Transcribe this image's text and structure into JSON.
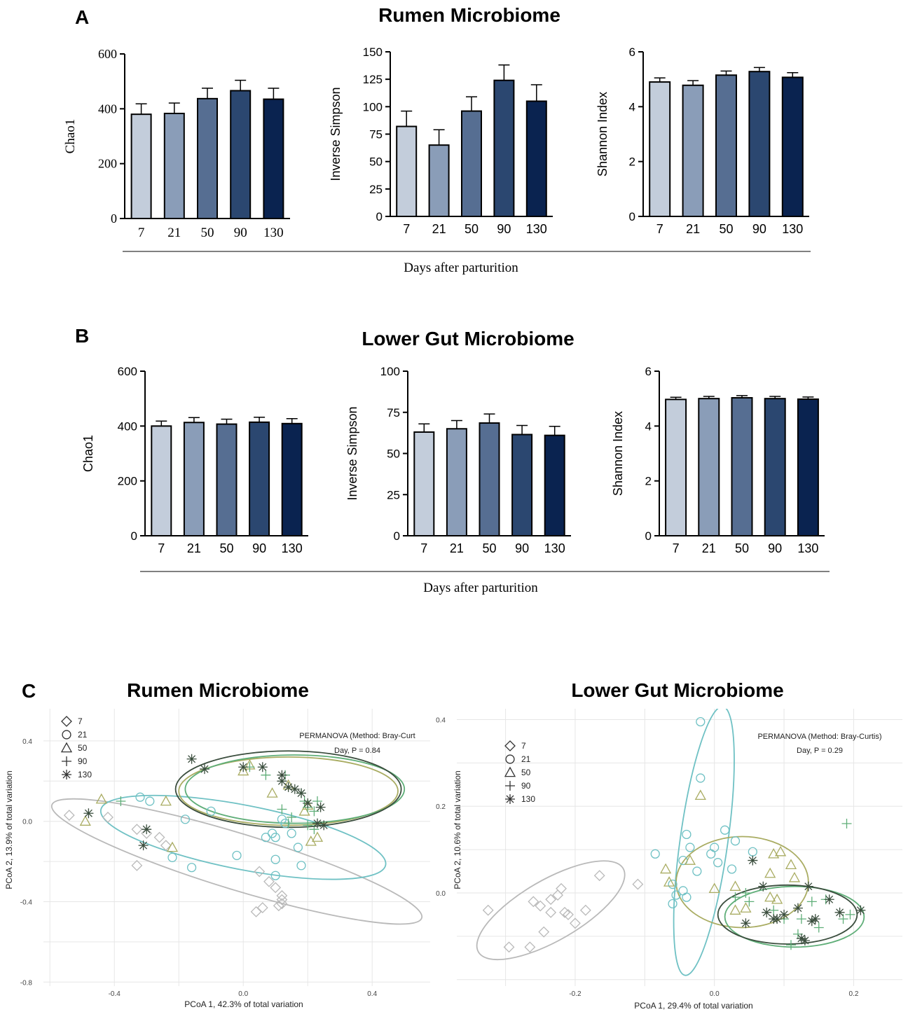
{
  "panels": {
    "A": {
      "letter": "A",
      "title": "Rumen Microbiome",
      "xlabel": "Days after parturition"
    },
    "B": {
      "letter": "B",
      "title": "Lower Gut Microbiome",
      "xlabel": "Days after parturition"
    },
    "C": {
      "letter": "C",
      "title_left": "Rumen Microbiome",
      "title_right": "Lower Gut Microbiome"
    }
  },
  "colors": {
    "bars": [
      "#c3cddb",
      "#8a9db8",
      "#566e92",
      "#2b4770",
      "#0a2350"
    ],
    "day7": "#b9b9b9",
    "day21": "#6fc1c4",
    "day50": "#a9ac62",
    "day90": "#5fae78",
    "day130": "#3a4d3d",
    "grid": "#e6e6e6"
  },
  "chart_data": [
    {
      "id": "A1",
      "type": "bar",
      "panel": "A",
      "categories": [
        "7",
        "21",
        "50",
        "90",
        "130"
      ],
      "values": [
        380,
        383,
        437,
        466,
        435
      ],
      "errors": [
        38,
        38,
        38,
        38,
        40
      ],
      "ylabel": "Chao1",
      "ylim": [
        0,
        600
      ],
      "yticks": [
        0,
        200,
        400,
        600
      ]
    },
    {
      "id": "A2",
      "type": "bar",
      "panel": "A",
      "categories": [
        "7",
        "21",
        "50",
        "90",
        "130"
      ],
      "values": [
        82,
        65,
        96,
        124,
        105
      ],
      "errors": [
        14,
        14,
        13,
        14,
        15
      ],
      "ylabel": "Inverse Simpson",
      "ylim": [
        0,
        150
      ],
      "yticks": [
        0,
        25,
        50,
        75,
        100,
        125,
        150
      ]
    },
    {
      "id": "A3",
      "type": "bar",
      "panel": "A",
      "categories": [
        "7",
        "21",
        "50",
        "90",
        "130"
      ],
      "values": [
        4.9,
        4.78,
        5.15,
        5.28,
        5.07
      ],
      "errors": [
        0.15,
        0.17,
        0.15,
        0.15,
        0.17
      ],
      "ylabel": "Shannon Index",
      "ylim": [
        0,
        6
      ],
      "yticks": [
        0,
        2,
        4,
        6
      ]
    },
    {
      "id": "B1",
      "type": "bar",
      "panel": "B",
      "categories": [
        "7",
        "21",
        "50",
        "90",
        "130"
      ],
      "values": [
        400,
        413,
        407,
        414,
        409
      ],
      "errors": [
        18,
        18,
        18,
        18,
        18
      ],
      "ylabel": "Chao1",
      "ylim": [
        0,
        600
      ],
      "yticks": [
        0,
        200,
        400,
        600
      ]
    },
    {
      "id": "B2",
      "type": "bar",
      "panel": "B",
      "categories": [
        "7",
        "21",
        "50",
        "90",
        "130"
      ],
      "values": [
        63,
        65,
        68.5,
        61.5,
        61
      ],
      "errors": [
        5,
        5,
        5.5,
        5.5,
        5.5
      ],
      "ylabel": "Inverse Simpson",
      "ylim": [
        0,
        100
      ],
      "yticks": [
        0,
        25,
        50,
        75,
        100
      ]
    },
    {
      "id": "B3",
      "type": "bar",
      "panel": "B",
      "categories": [
        "7",
        "21",
        "50",
        "90",
        "130"
      ],
      "values": [
        4.97,
        5.0,
        5.03,
        5.0,
        4.98
      ],
      "errors": [
        0.08,
        0.08,
        0.08,
        0.08,
        0.08
      ],
      "ylabel": "Shannon Index",
      "ylim": [
        0,
        6
      ],
      "yticks": [
        0,
        2,
        4,
        6
      ]
    },
    {
      "id": "C1",
      "type": "scatter",
      "panel": "C",
      "xlabel": "PCoA 1, 42.3% of total variation",
      "ylabel": "PCoA 2, 13.9% of total variation",
      "xlim": [
        -0.62,
        0.58
      ],
      "ylim": [
        -0.82,
        0.56
      ],
      "xticks": [
        -0.4,
        0.0,
        0.4
      ],
      "xticklabels": [
        "-0.4",
        "0.0",
        "0.4"
      ],
      "yticks": [
        -0.8,
        -0.4,
        0.0,
        0.4
      ],
      "yticklabels": [
        "-0.8",
        "-0.4",
        "0.0",
        "0.4"
      ],
      "legend": [
        "7",
        "21",
        "50",
        "90",
        "130"
      ],
      "annotation": [
        "PERMANOVA (Method: Bray-Curt",
        "Day, P = 0.84"
      ],
      "series": [
        {
          "name": "7",
          "marker": "diamond",
          "points": [
            [
              -0.54,
              0.03
            ],
            [
              -0.42,
              0.02
            ],
            [
              -0.33,
              -0.04
            ],
            [
              -0.3,
              -0.06
            ],
            [
              -0.26,
              -0.08
            ],
            [
              -0.24,
              -0.12
            ],
            [
              -0.33,
              -0.22
            ],
            [
              0.05,
              -0.25
            ],
            [
              0.08,
              -0.3
            ],
            [
              0.1,
              -0.33
            ],
            [
              0.12,
              -0.37
            ],
            [
              0.06,
              -0.43
            ],
            [
              0.04,
              -0.45
            ],
            [
              0.12,
              -0.41
            ],
            [
              0.11,
              -0.42
            ],
            [
              0.12,
              -0.39
            ]
          ]
        },
        {
          "name": "21",
          "marker": "circle",
          "points": [
            [
              -0.32,
              0.12
            ],
            [
              -0.29,
              0.1
            ],
            [
              -0.18,
              0.01
            ],
            [
              -0.1,
              0.05
            ],
            [
              -0.02,
              -0.17
            ],
            [
              -0.16,
              -0.23
            ],
            [
              -0.22,
              -0.18
            ],
            [
              0.12,
              0.01
            ],
            [
              0.13,
              -0.01
            ],
            [
              0.15,
              -0.06
            ],
            [
              0.09,
              -0.06
            ],
            [
              0.1,
              -0.08
            ],
            [
              0.07,
              -0.08
            ],
            [
              0.17,
              -0.13
            ],
            [
              0.1,
              -0.19
            ],
            [
              0.1,
              -0.27
            ],
            [
              0.18,
              -0.22
            ]
          ]
        },
        {
          "name": "50",
          "marker": "triangle",
          "points": [
            [
              -0.44,
              0.11
            ],
            [
              -0.49,
              0.0
            ],
            [
              -0.24,
              0.1
            ],
            [
              -0.22,
              -0.13
            ],
            [
              0.0,
              0.25
            ],
            [
              0.09,
              0.14
            ],
            [
              0.14,
              0.18
            ],
            [
              0.2,
              0.08
            ],
            [
              0.19,
              0.05
            ],
            [
              0.21,
              -0.1
            ],
            [
              0.23,
              -0.08
            ],
            [
              0.02,
              0.28
            ]
          ]
        },
        {
          "name": "90",
          "marker": "plus",
          "points": [
            [
              -0.38,
              0.1
            ],
            [
              0.02,
              0.27
            ],
            [
              0.07,
              0.23
            ],
            [
              0.13,
              0.23
            ],
            [
              0.18,
              0.14
            ],
            [
              0.19,
              0.1
            ],
            [
              0.2,
              0.07
            ],
            [
              0.22,
              0.05
            ],
            [
              0.12,
              0.06
            ],
            [
              0.14,
              -0.01
            ],
            [
              0.15,
              0.02
            ],
            [
              0.2,
              -0.02
            ],
            [
              0.23,
              0.1
            ],
            [
              0.22,
              -0.04
            ]
          ]
        },
        {
          "name": "130",
          "marker": "asterisk",
          "points": [
            [
              -0.48,
              0.04
            ],
            [
              -0.3,
              -0.04
            ],
            [
              -0.31,
              -0.12
            ],
            [
              -0.16,
              0.31
            ],
            [
              -0.12,
              0.26
            ],
            [
              0.0,
              0.27
            ],
            [
              0.06,
              0.27
            ],
            [
              0.12,
              0.23
            ],
            [
              0.12,
              0.2
            ],
            [
              0.14,
              0.17
            ],
            [
              0.16,
              0.16
            ],
            [
              0.18,
              0.14
            ],
            [
              0.2,
              0.09
            ],
            [
              0.24,
              0.07
            ],
            [
              0.23,
              -0.01
            ],
            [
              0.25,
              -0.02
            ]
          ]
        }
      ],
      "ellipses": [
        {
          "series": "7",
          "cx": -0.02,
          "cy": -0.2,
          "rx": 0.6,
          "ry": 0.14,
          "angle_deg": 17
        },
        {
          "series": "21",
          "cx": 0.0,
          "cy": -0.08,
          "rx": 0.45,
          "ry": 0.16,
          "angle_deg": 11
        },
        {
          "series": "50",
          "cx": 0.14,
          "cy": 0.15,
          "rx": 0.34,
          "ry": 0.17,
          "angle_deg": 0
        },
        {
          "series": "90",
          "cx": 0.16,
          "cy": 0.16,
          "rx": 0.34,
          "ry": 0.17,
          "angle_deg": 0
        },
        {
          "series": "130",
          "cx": 0.14,
          "cy": 0.16,
          "rx": 0.35,
          "ry": 0.19,
          "angle_deg": 0
        }
      ]
    },
    {
      "id": "C2",
      "type": "scatter",
      "panel": "C",
      "xlabel": "PCoA 1, 29.4% of total variation",
      "ylabel": "PCoA 2, 10.6% of total variation",
      "xlim": [
        -0.37,
        0.27
      ],
      "ylim": [
        -0.215,
        0.425
      ],
      "xticks": [
        -0.2,
        0.0,
        0.2
      ],
      "xticklabels": [
        "-0.2",
        "0.0",
        "0.2"
      ],
      "yticks": [
        0.0,
        0.2,
        0.4
      ],
      "yticklabels": [
        "0.0",
        "0.2",
        "0.4"
      ],
      "legend": [
        "7",
        "21",
        "50",
        "90",
        "130"
      ],
      "annotation": [
        "PERMANOVA (Method: Bray-Curtis)",
        "Day, P = 0.29"
      ],
      "series": [
        {
          "name": "7",
          "marker": "diamond",
          "points": [
            [
              -0.325,
              -0.04
            ],
            [
              -0.295,
              -0.125
            ],
            [
              -0.265,
              -0.125
            ],
            [
              -0.26,
              -0.02
            ],
            [
              -0.25,
              -0.03
            ],
            [
              -0.245,
              -0.09
            ],
            [
              -0.235,
              -0.015
            ],
            [
              -0.235,
              -0.045
            ],
            [
              -0.225,
              -0.005
            ],
            [
              -0.22,
              0.01
            ],
            [
              -0.215,
              -0.045
            ],
            [
              -0.21,
              -0.05
            ],
            [
              -0.2,
              -0.07
            ],
            [
              -0.185,
              -0.04
            ],
            [
              -0.165,
              0.04
            ],
            [
              -0.11,
              0.02
            ]
          ]
        },
        {
          "name": "21",
          "marker": "circle",
          "points": [
            [
              -0.02,
              0.395
            ],
            [
              -0.02,
              0.265
            ],
            [
              -0.085,
              0.09
            ],
            [
              -0.06,
              0.02
            ],
            [
              -0.06,
              -0.025
            ],
            [
              -0.055,
              -0.005
            ],
            [
              -0.045,
              0.005
            ],
            [
              -0.04,
              -0.01
            ],
            [
              -0.045,
              0.075
            ],
            [
              -0.04,
              0.135
            ],
            [
              -0.035,
              0.105
            ],
            [
              -0.025,
              0.05
            ],
            [
              -0.005,
              0.09
            ],
            [
              0.0,
              0.105
            ],
            [
              0.005,
              0.07
            ],
            [
              0.015,
              0.145
            ],
            [
              0.025,
              0.055
            ],
            [
              0.03,
              0.12
            ],
            [
              0.055,
              0.095
            ]
          ]
        },
        {
          "name": "50",
          "marker": "triangle",
          "points": [
            [
              -0.02,
              0.225
            ],
            [
              -0.07,
              0.055
            ],
            [
              -0.065,
              0.025
            ],
            [
              -0.035,
              0.075
            ],
            [
              0.0,
              0.01
            ],
            [
              0.03,
              0.015
            ],
            [
              0.03,
              -0.04
            ],
            [
              0.045,
              -0.035
            ],
            [
              0.085,
              0.09
            ],
            [
              0.095,
              0.095
            ],
            [
              0.08,
              0.045
            ],
            [
              0.08,
              -0.01
            ],
            [
              0.09,
              -0.015
            ],
            [
              0.11,
              0.065
            ],
            [
              0.115,
              0.035
            ]
          ]
        },
        {
          "name": "90",
          "marker": "plus",
          "points": [
            [
              0.19,
              0.16
            ],
            [
              0.03,
              -0.01
            ],
            [
              0.045,
              0.0
            ],
            [
              0.05,
              -0.02
            ],
            [
              0.085,
              -0.04
            ],
            [
              0.1,
              -0.06
            ],
            [
              0.125,
              -0.06
            ],
            [
              0.14,
              -0.02
            ],
            [
              0.16,
              -0.015
            ],
            [
              0.15,
              -0.08
            ],
            [
              0.12,
              -0.095
            ],
            [
              0.185,
              -0.06
            ],
            [
              0.195,
              -0.05
            ],
            [
              0.11,
              -0.12
            ]
          ]
        },
        {
          "name": "130",
          "marker": "asterisk",
          "points": [
            [
              0.055,
              0.075
            ],
            [
              0.045,
              -0.07
            ],
            [
              0.07,
              0.015
            ],
            [
              0.075,
              -0.045
            ],
            [
              0.085,
              -0.06
            ],
            [
              0.09,
              -0.06
            ],
            [
              0.1,
              -0.05
            ],
            [
              0.12,
              -0.035
            ],
            [
              0.125,
              -0.105
            ],
            [
              0.13,
              -0.11
            ],
            [
              0.135,
              0.015
            ],
            [
              0.14,
              -0.065
            ],
            [
              0.145,
              -0.06
            ],
            [
              0.165,
              -0.015
            ],
            [
              0.18,
              -0.045
            ],
            [
              0.21,
              -0.04
            ]
          ]
        }
      ],
      "ellipses": [
        {
          "series": "7",
          "cx": -0.235,
          "cy": -0.04,
          "rx": 0.12,
          "ry": 0.07,
          "angle_deg": -30
        },
        {
          "series": "21",
          "cx": -0.015,
          "cy": 0.12,
          "rx": 0.195,
          "ry": 0.055,
          "angle_deg": -82
        },
        {
          "series": "50",
          "cx": 0.04,
          "cy": 0.025,
          "rx": 0.095,
          "ry": 0.105,
          "angle_deg": 0
        },
        {
          "series": "90",
          "cx": 0.115,
          "cy": -0.055,
          "rx": 0.1,
          "ry": 0.07,
          "angle_deg": 0
        },
        {
          "series": "130",
          "cx": 0.105,
          "cy": -0.05,
          "rx": 0.1,
          "ry": 0.068,
          "angle_deg": 0
        }
      ]
    }
  ]
}
